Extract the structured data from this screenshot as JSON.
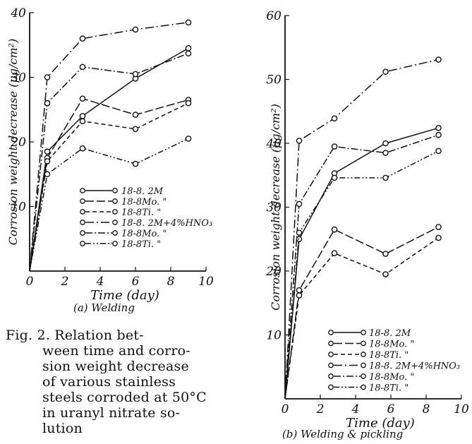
{
  "caption": {
    "lines": [
      "Fig. 2.  Relation  bet-",
      "ween time and corro-",
      "sion weight decrease",
      "of  various  stainless",
      "steels corroded at 50°C",
      "in  uranyl nitrate so-",
      "lution"
    ]
  },
  "chart_data": [
    {
      "type": "line",
      "title": "(a)  Welding",
      "xlabel": "Time (day)",
      "ylabel": "Corrosion weight decrease (μg/cm²)",
      "xlim": [
        0,
        10
      ],
      "ylim": [
        0,
        40
      ],
      "xticks": [
        "0",
        "2",
        "4",
        "6",
        "8",
        "10"
      ],
      "yticks": [
        "10",
        "20",
        "30",
        "40"
      ],
      "grid": false,
      "legend_position": "center-right",
      "series": [
        {
          "name": "18-8.  2M",
          "dash": "",
          "x": [
            0,
            1,
            3,
            6,
            9
          ],
          "y": [
            0,
            18.5,
            24,
            29.8,
            34.5
          ]
        },
        {
          "name": "18-8Mo.  \"",
          "dash": "12,4",
          "x": [
            0,
            1,
            3,
            6,
            9
          ],
          "y": [
            0,
            17.5,
            26.7,
            24.2,
            26.5
          ]
        },
        {
          "name": "18-8Ti.  \"",
          "dash": "6,4",
          "x": [
            0,
            1,
            3,
            6,
            9
          ],
          "y": [
            0,
            17,
            23.2,
            22,
            26
          ]
        },
        {
          "name": "18-8.  2M+4%HNO₃",
          "dash": "12,4,2,4",
          "x": [
            0,
            1,
            3,
            6,
            9
          ],
          "y": [
            0,
            30,
            36,
            37.4,
            38.5
          ]
        },
        {
          "name": "18-8Mo.  \"",
          "dash": "10,3,2,3",
          "x": [
            0,
            1,
            3,
            6,
            9
          ],
          "y": [
            0,
            26,
            31.6,
            30.5,
            33.7
          ]
        },
        {
          "name": "18-8Ti.  \"",
          "dash": "8,3,2,3,2,3",
          "x": [
            0,
            1,
            3,
            6,
            9
          ],
          "y": [
            0,
            15,
            19,
            16.6,
            20.5
          ]
        }
      ]
    },
    {
      "type": "line",
      "title": "(b)  Welding & pickling",
      "xlabel": "Time (day)",
      "ylabel": "Corrosion weight decrease (μg/cm²)",
      "xlim": [
        0,
        10
      ],
      "ylim": [
        0,
        60
      ],
      "xticks": [
        "0",
        "2",
        "4",
        "6",
        "8",
        "10"
      ],
      "yticks": [
        "10",
        "20",
        "30",
        "40",
        "50",
        "60"
      ],
      "grid": false,
      "legend_position": "bottom-right",
      "series": [
        {
          "name": "18-8.  2M",
          "dash": "",
          "x": [
            0,
            0.8,
            2.8,
            5.7,
            8.7
          ],
          "y": [
            0,
            25,
            35.3,
            40,
            42.4
          ]
        },
        {
          "name": "18-8Mo.  \"",
          "dash": "12,4",
          "x": [
            0,
            0.8,
            2.8,
            5.7,
            8.7
          ],
          "y": [
            0,
            17,
            26.5,
            22.7,
            26.9
          ]
        },
        {
          "name": "18-8Ti.  \"",
          "dash": "6,4",
          "x": [
            0,
            0.8,
            2.8,
            5.7,
            8.7
          ],
          "y": [
            0,
            16.2,
            22.8,
            19.5,
            25.2
          ]
        },
        {
          "name": "18-8.  2M+4%HNO₃",
          "dash": "12,4,2,4",
          "x": [
            0,
            0.8,
            2.8,
            5.7,
            8.7
          ],
          "y": [
            0,
            40.4,
            43.9,
            51.2,
            53.1
          ]
        },
        {
          "name": "18-8Mo.  \"",
          "dash": "10,3,2,3",
          "x": [
            0,
            0.8,
            2.8,
            5.7,
            8.7
          ],
          "y": [
            0,
            30.5,
            39.5,
            38.5,
            41.3
          ]
        },
        {
          "name": "18-8Ti.  \"",
          "dash": "8,3,2,3,2,3",
          "x": [
            0,
            0.8,
            2.8,
            5.7,
            8.7
          ],
          "y": [
            0,
            26,
            34.6,
            34.6,
            38.8
          ]
        }
      ]
    }
  ]
}
